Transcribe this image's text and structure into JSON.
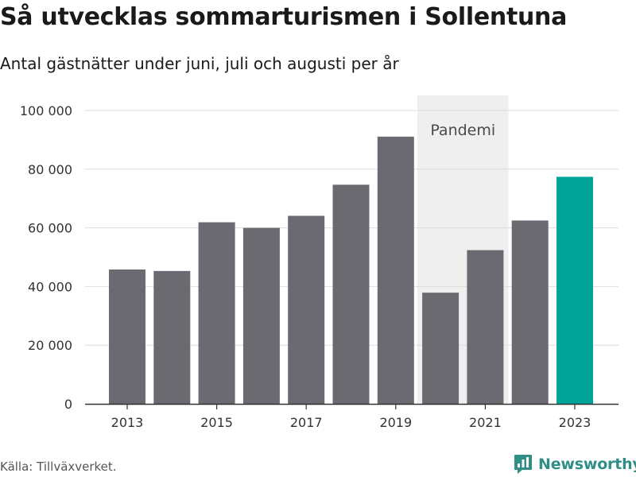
{
  "header": {
    "title": "Så utvecklas sommarturismen i Sollentuna",
    "subtitle": "Antal gästnätter under juni, juli och augusti per år"
  },
  "footer": {
    "source": "Källa: Tillväxverket.",
    "brand": "Newsworthy",
    "brand_icon": "chart-bubble-icon"
  },
  "colors": {
    "bar": "#6b6a70",
    "highlight": "#00a398",
    "shade": "#efefef",
    "grid": "#dddddd",
    "brand": "#2f8f87"
  },
  "chart_data": {
    "type": "bar",
    "title": "Så utvecklas sommarturismen i Sollentuna",
    "subtitle": "Antal gästnätter under juni, juli och augusti per år",
    "categories": [
      2013,
      2014,
      2015,
      2016,
      2017,
      2018,
      2019,
      2020,
      2021,
      2022,
      2023
    ],
    "values": [
      45800,
      45300,
      61900,
      60000,
      64100,
      74700,
      91100,
      37900,
      52400,
      62500,
      77400
    ],
    "highlight_category": 2023,
    "ylim": [
      0,
      100000
    ],
    "yticks": [
      0,
      20000,
      40000,
      60000,
      80000,
      100000
    ],
    "ytick_labels": [
      "0",
      "20 000",
      "40 000",
      "60 000",
      "80 000",
      "100 000"
    ],
    "xticks": [
      2013,
      2015,
      2017,
      2019,
      2021,
      2023
    ],
    "xtick_labels": [
      "2013",
      "2015",
      "2017",
      "2019",
      "2021",
      "2023"
    ],
    "annotations": [
      {
        "type": "shaded_region",
        "x_start": 2020,
        "x_end": 2021,
        "label": "Pandemi"
      }
    ],
    "grid": true,
    "legend": "none"
  }
}
